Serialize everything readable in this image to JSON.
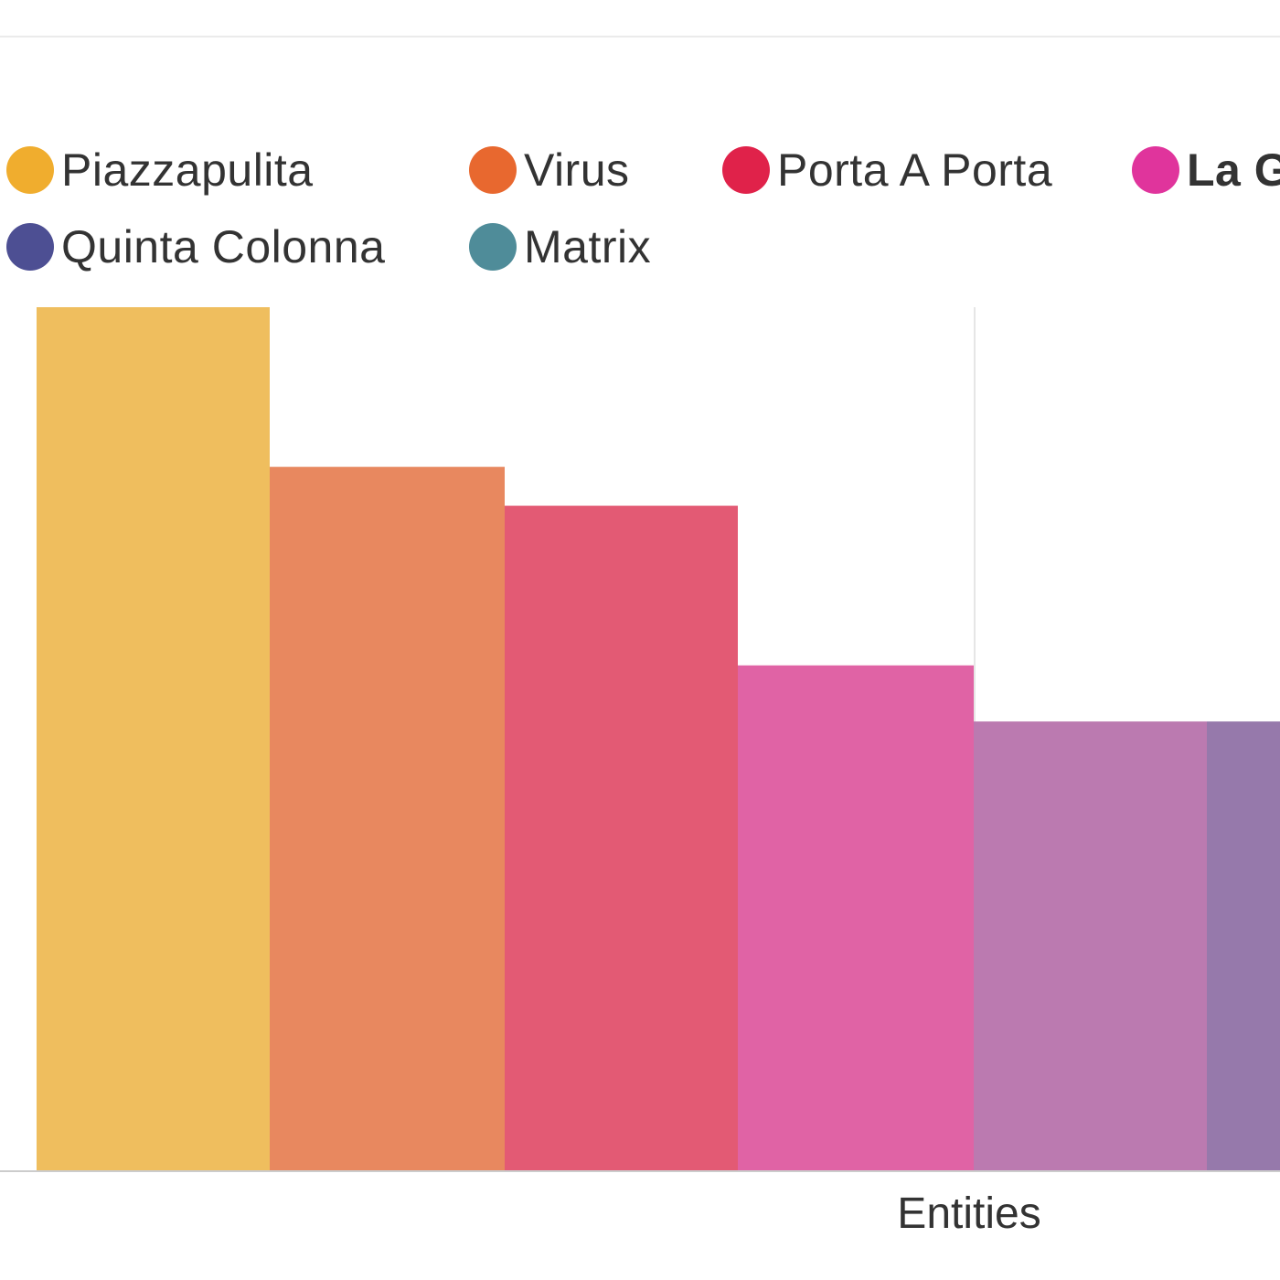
{
  "chart_data": {
    "type": "bar",
    "xlabel": "Entities",
    "ylabel": "",
    "title": "",
    "legend_position": "top",
    "grid": true,
    "ylim": [
      0,
      100
    ],
    "legend": [
      {
        "label": "Piazzapulita",
        "color": "#f0ad2e"
      },
      {
        "label": "Virus",
        "color": "#e8682f"
      },
      {
        "label": "Porta A Porta",
        "color": "#e0224a"
      },
      {
        "label": "La G",
        "color": "#e0349c"
      },
      {
        "label": "Quinta Colonna",
        "color": "#4d4f93"
      },
      {
        "label": "Matrix",
        "color": "#4f8c99"
      }
    ],
    "bars": [
      {
        "value": 100,
        "color": "#efbe5e"
      },
      {
        "value": 81.5,
        "color": "#e8885f"
      },
      {
        "value": 77,
        "color": "#e35a74"
      },
      {
        "value": 58.5,
        "color": "#e063a5"
      },
      {
        "value": 52,
        "color": "#bb7ab0"
      },
      {
        "value": 52,
        "color": "#9679ab"
      }
    ]
  }
}
